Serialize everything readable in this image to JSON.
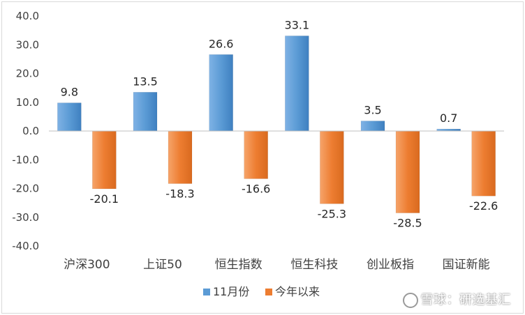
{
  "chart_data": {
    "type": "bar",
    "categories": [
      "沪深300",
      "上证50",
      "恒生指数",
      "恒生科技",
      "创业板指",
      "国证新能"
    ],
    "series": [
      {
        "name": "11月份",
        "values": [
          9.8,
          13.5,
          26.6,
          33.1,
          3.5,
          0.7
        ],
        "color": "#5b9bd5"
      },
      {
        "name": "今年以来",
        "values": [
          -20.1,
          -18.3,
          -16.6,
          -25.3,
          -28.5,
          -22.6
        ],
        "color": "#ed7d31"
      }
    ],
    "value_labels": [
      [
        "9.8",
        "13.5",
        "26.6",
        "33.1",
        "3.5",
        "0.7"
      ],
      [
        "-20.1",
        "-18.3",
        "-16.6",
        "-25.3",
        "-28.5",
        "-22.6"
      ]
    ],
    "yticks": [
      40,
      30,
      20,
      10,
      0,
      -10,
      -20,
      -30,
      -40
    ],
    "ytick_labels": [
      "40.0",
      "30.0",
      "20.0",
      "10.0",
      "0.0",
      "-10.0",
      "-20.0",
      "-30.0",
      "-40.0"
    ],
    "ylim": [
      -40,
      40
    ],
    "grid": false,
    "legend": "bottom",
    "title": "",
    "xlabel": "",
    "ylabel": ""
  },
  "watermark": {
    "text": "雪球：研选基汇",
    "icon": "snowball-logo-icon"
  }
}
